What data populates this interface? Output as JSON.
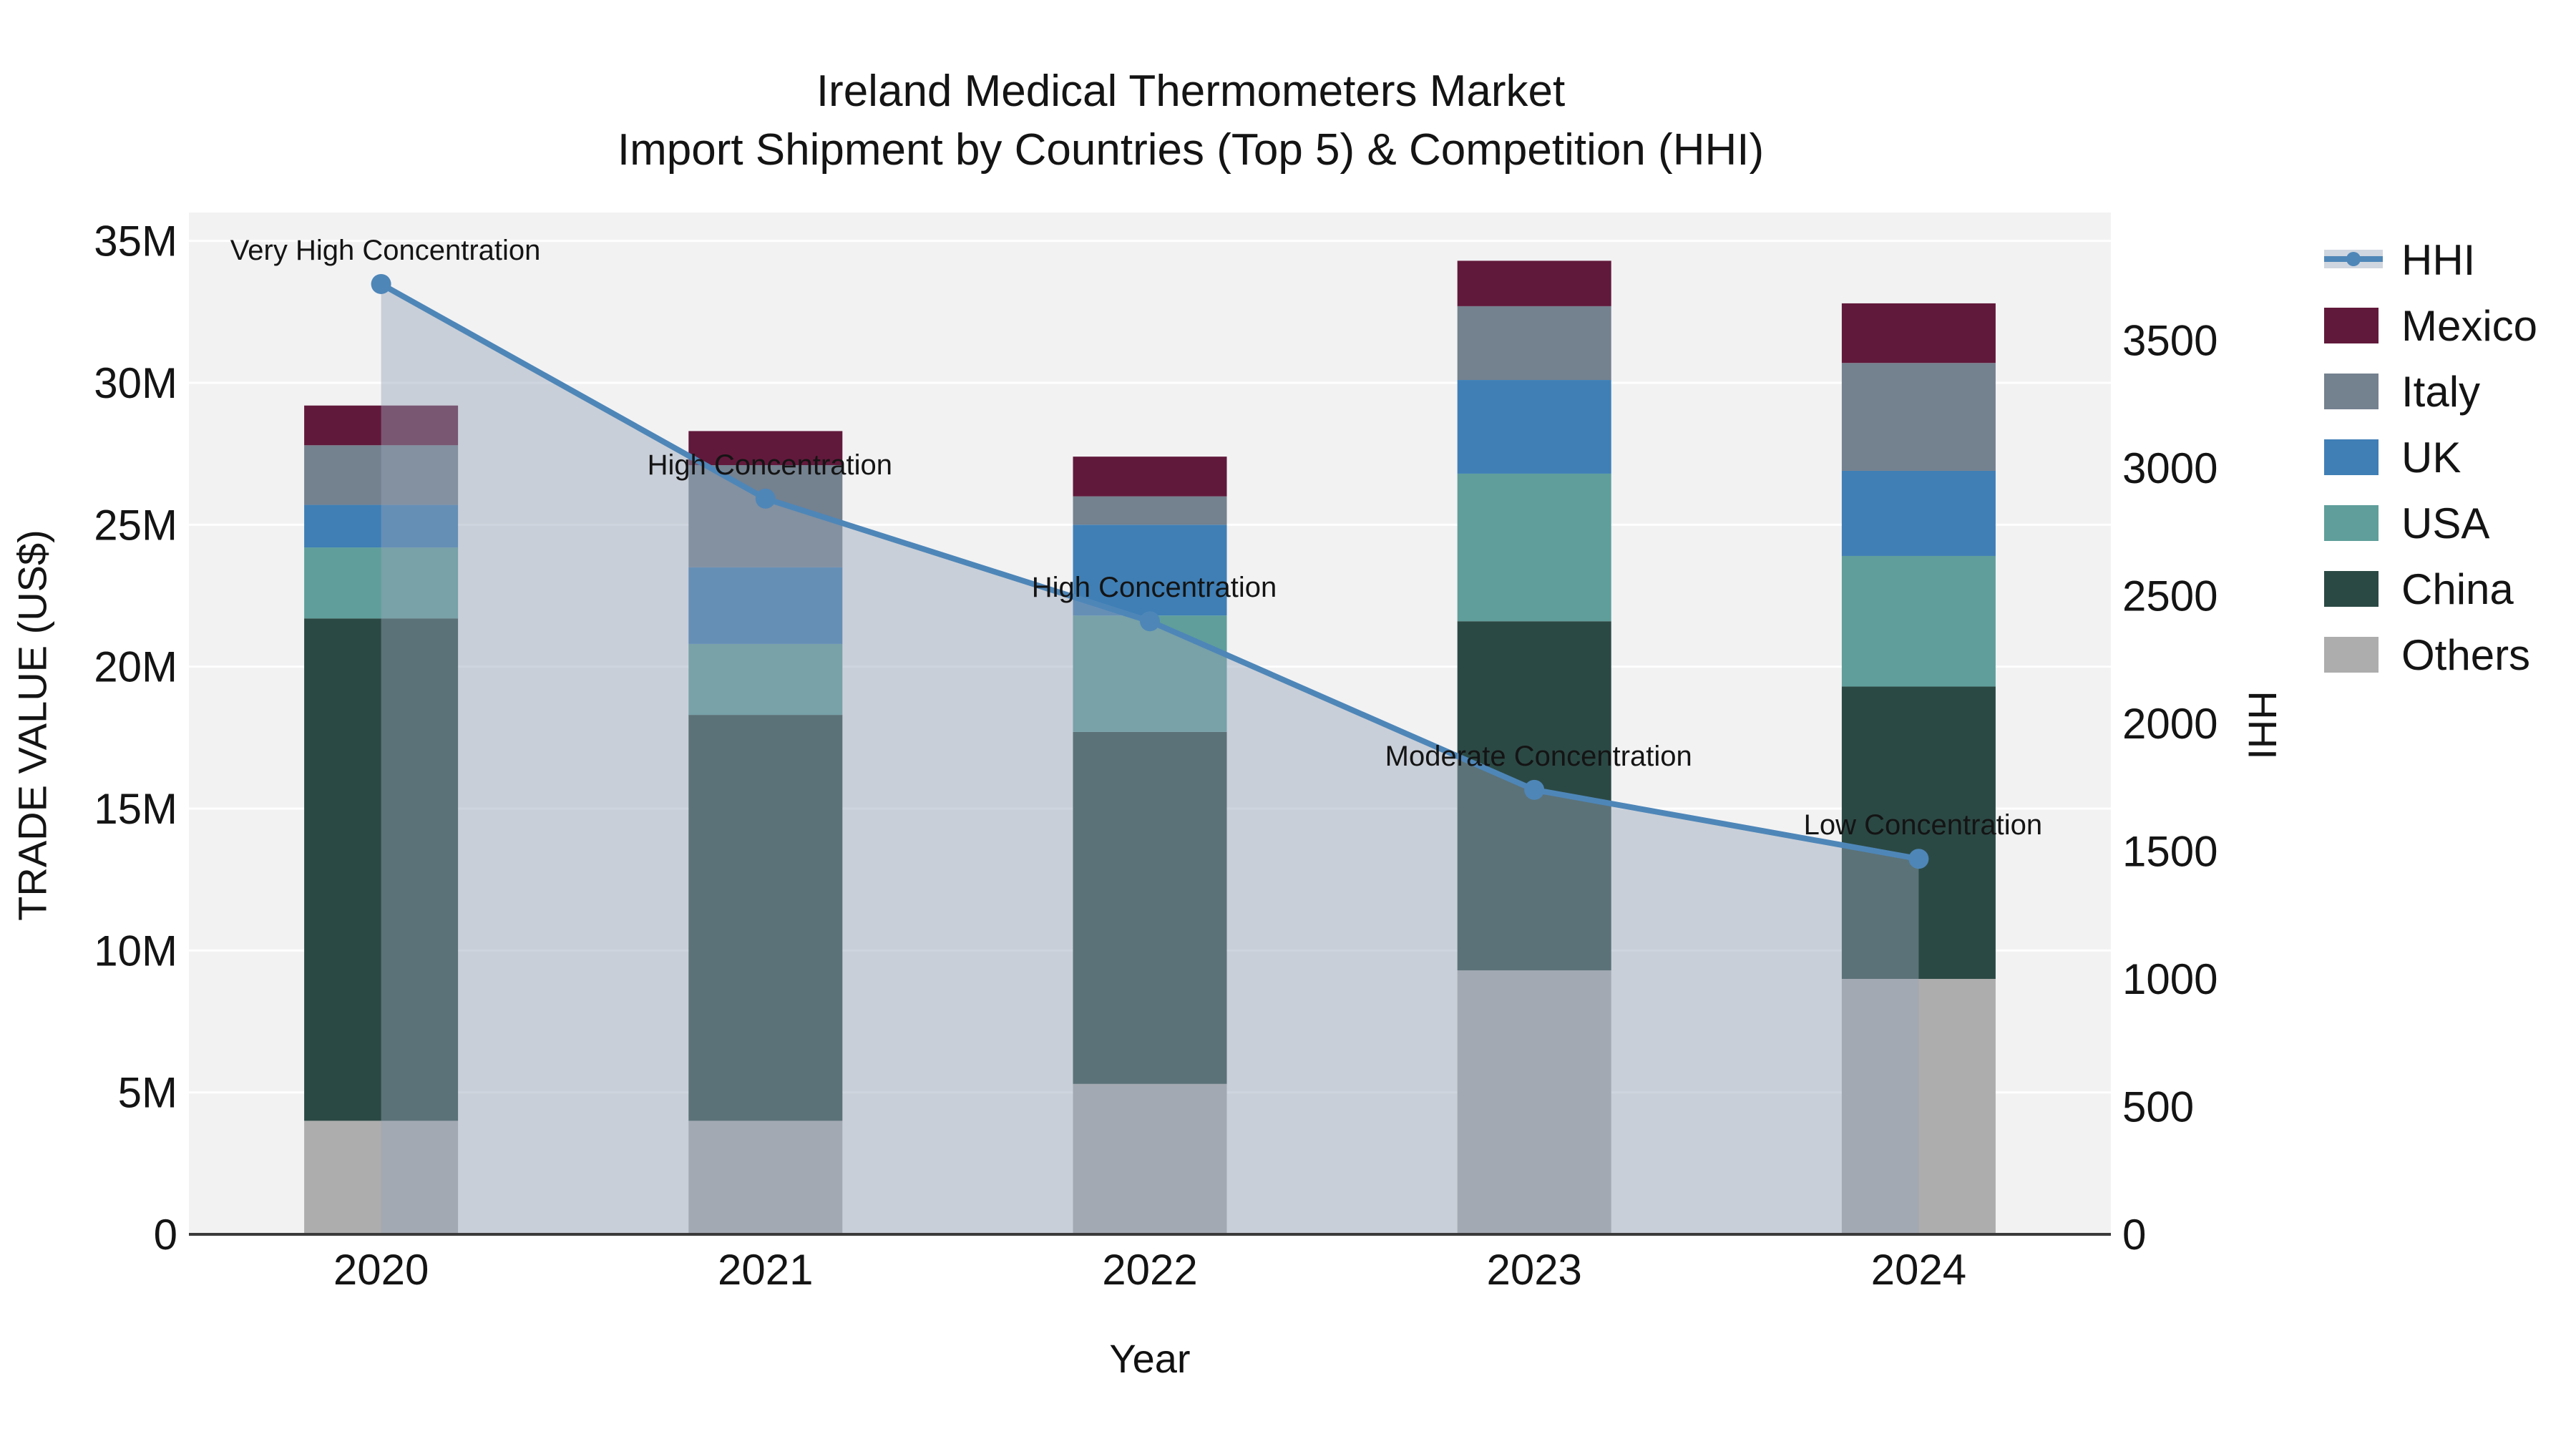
{
  "title": {
    "line1": "Ireland Medical Thermometers Market",
    "line2": "Import Shipment by Countries (Top 5) & Competition (HHI)"
  },
  "axes": {
    "x": {
      "label": "Year"
    },
    "y_left": {
      "label": "TRADE VALUE (US$)",
      "tick_labels": [
        "0",
        "5M",
        "10M",
        "15M",
        "20M",
        "25M",
        "30M",
        "35M"
      ],
      "range_musd": [
        0,
        36
      ]
    },
    "y_right": {
      "label": "HHI",
      "tick_labels": [
        "0",
        "500",
        "1000",
        "1500",
        "2000",
        "2500",
        "3000",
        "3500"
      ],
      "range": [
        0,
        4000
      ]
    }
  },
  "legend": {
    "items": [
      {
        "label": "HHI",
        "type": "line",
        "color": "#4E86B8"
      },
      {
        "label": "Mexico",
        "type": "swatch",
        "color": "#61193B"
      },
      {
        "label": "Italy",
        "type": "swatch",
        "color": "#74818F"
      },
      {
        "label": "UK",
        "type": "swatch",
        "color": "#3F7FB5"
      },
      {
        "label": "USA",
        "type": "swatch",
        "color": "#5F9E9B"
      },
      {
        "label": "China",
        "type": "swatch",
        "color": "#2B4944"
      },
      {
        "label": "Others",
        "type": "swatch",
        "color": "#ADADAD"
      }
    ]
  },
  "colors": {
    "plot_bg": "#F2F2F3",
    "gridline": "rgba(255,255,255,0.9)",
    "axis_line": "#3A3A3A",
    "hhi_line": "#4E86B8",
    "hhi_area": "rgba(150,164,184,0.45)",
    "text": "#141414"
  },
  "chart_data": {
    "type": "bar+line",
    "title": "Ireland Medical Thermometers Market — Import Shipment by Countries (Top 5) & Competition (HHI)",
    "categories": [
      "2020",
      "2021",
      "2022",
      "2023",
      "2024"
    ],
    "bar_unit": "million US$",
    "stack_order_bottom_to_top": [
      "Others",
      "China",
      "USA",
      "UK",
      "Italy",
      "Mexico"
    ],
    "series": [
      {
        "name": "Others",
        "color": "#ADADAD",
        "values": [
          4.0,
          4.0,
          5.3,
          9.3,
          9.0
        ]
      },
      {
        "name": "China",
        "color": "#2B4944",
        "values": [
          17.7,
          14.3,
          12.4,
          12.3,
          10.3
        ]
      },
      {
        "name": "USA",
        "color": "#5F9E9B",
        "values": [
          2.5,
          2.5,
          4.1,
          5.2,
          4.6
        ]
      },
      {
        "name": "UK",
        "color": "#3F7FB5",
        "values": [
          1.5,
          2.7,
          3.2,
          3.3,
          3.0
        ]
      },
      {
        "name": "Italy",
        "color": "#74818F",
        "values": [
          2.1,
          3.6,
          1.0,
          2.6,
          3.8
        ]
      },
      {
        "name": "Mexico",
        "color": "#61193B",
        "values": [
          1.4,
          1.2,
          1.4,
          1.6,
          2.1
        ]
      }
    ],
    "bar_totals_musd": [
      29.2,
      28.3,
      27.4,
      34.3,
      32.8
    ],
    "line": {
      "name": "HHI",
      "axis": "right",
      "values": [
        3720,
        2880,
        2400,
        1740,
        1470
      ],
      "annotations": [
        "Very High Concentration",
        "High Concentration",
        "High Concentration",
        "Moderate Concentration",
        "Low Concentration"
      ]
    },
    "xlabel": "Year",
    "ylabel_left": "TRADE VALUE (US$)",
    "ylabel_right": "HHI",
    "ylim_left_musd": [
      0,
      36
    ],
    "ylim_right": [
      0,
      4000
    ],
    "grid": "horizontal",
    "legend_position": "right"
  }
}
